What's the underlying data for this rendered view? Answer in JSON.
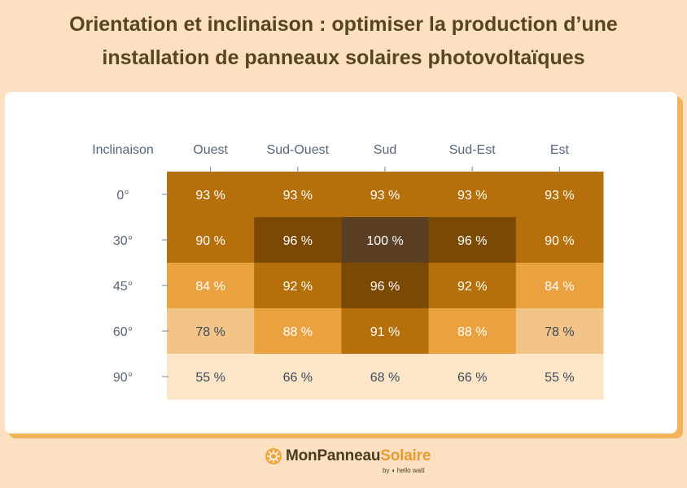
{
  "title_line1": "Orientation et inclinaison : optimiser la production d’une",
  "title_line2": "installation de panneaux solaires photovoltaïques",
  "chart_data": {
    "type": "heatmap",
    "corner_label": "Inclinaison",
    "columns": [
      "Ouest",
      "Sud-Ouest",
      "Sud",
      "Sud-Est",
      "Est"
    ],
    "rows": [
      "0°",
      "30°",
      "45°",
      "60°",
      "90°"
    ],
    "values": [
      [
        93,
        93,
        93,
        93,
        93
      ],
      [
        90,
        96,
        100,
        96,
        90
      ],
      [
        84,
        92,
        96,
        92,
        84
      ],
      [
        78,
        88,
        91,
        88,
        78
      ],
      [
        55,
        66,
        68,
        66,
        55
      ]
    ],
    "value_suffix": " %",
    "color_scale": [
      {
        "min": 100,
        "color": "#5b3f25"
      },
      {
        "min": 96,
        "color": "#7a4a05"
      },
      {
        "min": 90,
        "color": "#b5700b"
      },
      {
        "min": 84,
        "color": "#e9a23f"
      },
      {
        "min": 78,
        "color": "#f2c487"
      },
      {
        "min": 0,
        "color": "#fde6c8"
      }
    ],
    "text_colors": {
      "light": "#ffffff",
      "dark": "#3d4a5c"
    }
  },
  "logo": {
    "brand_dark": "MonPanneau",
    "brand_light": "Solaire",
    "byline": "by ◖ hello watt",
    "icon": "sun-icon"
  }
}
